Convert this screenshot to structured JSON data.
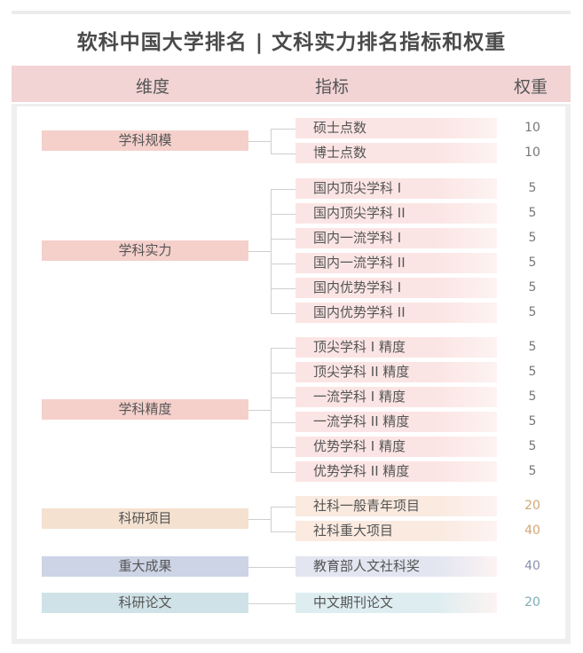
{
  "title": "软科中国大学排名 | 文科实力排名指标和权重",
  "header": {
    "dimension": "维度",
    "indicator": "指标",
    "weight": "权重"
  },
  "groups": [
    {
      "dimension": "学科规模",
      "colors": {
        "dim": "#f5d0cb",
        "ind": "#fbe5e4",
        "weight": "#777777"
      },
      "indicators": [
        {
          "name": "硕士点数",
          "weight": "10"
        },
        {
          "name": "博士点数",
          "weight": "10"
        }
      ]
    },
    {
      "dimension": "学科实力",
      "colors": {
        "dim": "#f5d0cb",
        "ind": "#fbe5e4",
        "weight": "#777777"
      },
      "indicators": [
        {
          "name": "国内顶尖学科 I",
          "weight": "5"
        },
        {
          "name": "国内顶尖学科 II",
          "weight": "5"
        },
        {
          "name": "国内一流学科 I",
          "weight": "5"
        },
        {
          "name": "国内一流学科 II",
          "weight": "5"
        },
        {
          "name": "国内优势学科 I",
          "weight": "5"
        },
        {
          "name": "国内优势学科 II",
          "weight": "5"
        }
      ]
    },
    {
      "dimension": "学科精度",
      "colors": {
        "dim": "#f5d0cb",
        "ind": "#fbe5e4",
        "weight": "#777777"
      },
      "indicators": [
        {
          "name": "顶尖学科 I 精度",
          "weight": "5"
        },
        {
          "name": "顶尖学科 II 精度",
          "weight": "5"
        },
        {
          "name": "一流学科 I 精度",
          "weight": "5"
        },
        {
          "name": "一流学科 II 精度",
          "weight": "5"
        },
        {
          "name": "优势学科 I 精度",
          "weight": "5"
        },
        {
          "name": "优势学科 II 精度",
          "weight": "5"
        }
      ]
    },
    {
      "dimension": "科研项目",
      "colors": {
        "dim": "#f4e1cf",
        "ind": "#faeae0",
        "weight": "#d2a878"
      },
      "indicators": [
        {
          "name": "社科一般青年项目",
          "weight": "20"
        },
        {
          "name": "社科重大项目",
          "weight": "40"
        }
      ]
    },
    {
      "dimension": "重大成果",
      "colors": {
        "dim": "#cdd4e6",
        "ind": "#e3e5f1",
        "weight": "#8892ad"
      },
      "indicators": [
        {
          "name": "教育部人文社科奖",
          "weight": "40"
        }
      ]
    },
    {
      "dimension": "科研论文",
      "colors": {
        "dim": "#cfe2e7",
        "ind": "#deedf0",
        "weight": "#7eadb5"
      },
      "indicators": [
        {
          "name": "中文期刊论文",
          "weight": "20"
        }
      ]
    }
  ]
}
